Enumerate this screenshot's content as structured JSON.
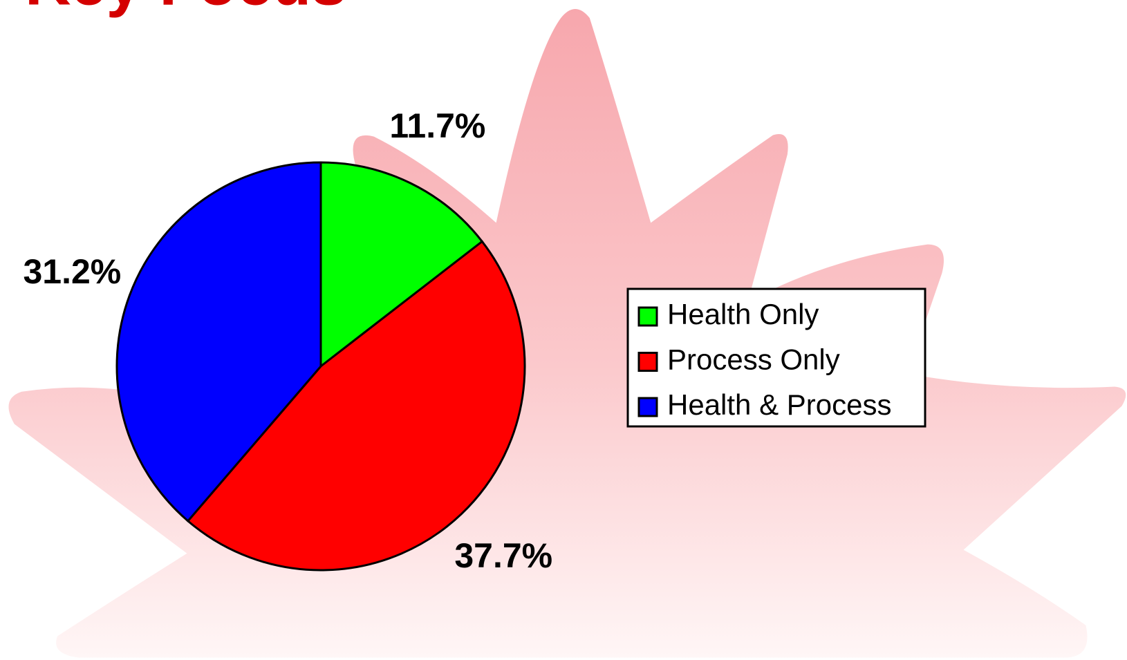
{
  "chart_data": {
    "type": "pie",
    "title": "Key Focus",
    "categories": [
      "Health Only",
      "Process Only",
      "Health & Process"
    ],
    "values": [
      11.7,
      37.7,
      31.2
    ],
    "value_labels": [
      "11.7%",
      "37.7%",
      "31.2%"
    ],
    "colors": [
      "#00ff00",
      "#ff0000",
      "#0000ff"
    ],
    "legend": "right"
  }
}
